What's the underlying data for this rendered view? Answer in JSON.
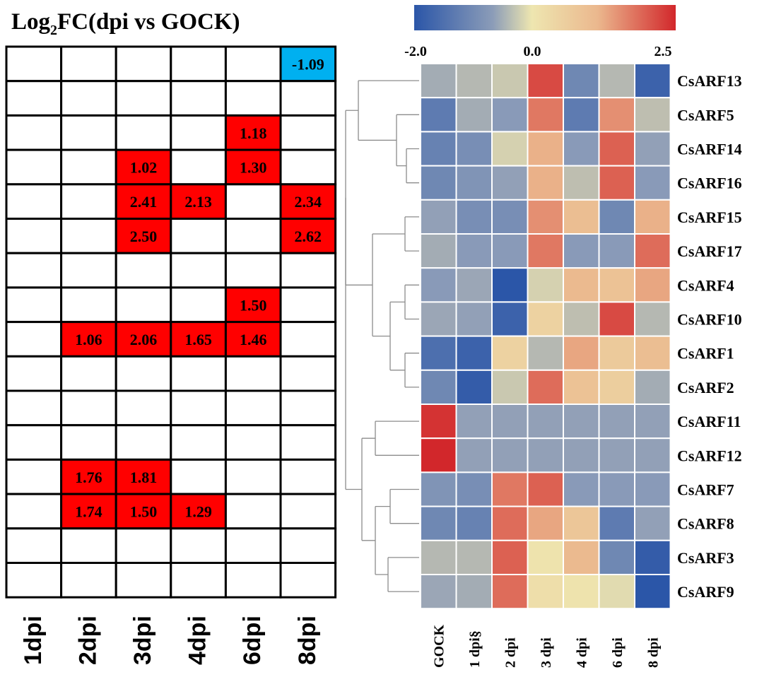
{
  "chart_data": [
    {
      "type": "table",
      "title_prefix": "Log",
      "title_subscript": "2",
      "title_suffix": "FC(dpi vs GOCK)",
      "columns": [
        "1dpi",
        "2dpi",
        "3dpi",
        "4dpi",
        "6dpi",
        "8dpi"
      ],
      "rows": 16,
      "cells": [
        [
          "",
          "",
          "",
          "",
          "",
          "-1.09"
        ],
        [
          "",
          "",
          "",
          "",
          "",
          ""
        ],
        [
          "",
          "",
          "",
          "",
          "1.18",
          ""
        ],
        [
          "",
          "",
          "1.02",
          "",
          "1.30",
          ""
        ],
        [
          "",
          "",
          "2.41",
          "2.13",
          "",
          "2.34"
        ],
        [
          "",
          "",
          "2.50",
          "",
          "",
          "2.62"
        ],
        [
          "",
          "",
          "",
          "",
          "",
          ""
        ],
        [
          "",
          "",
          "",
          "",
          "1.50",
          ""
        ],
        [
          "",
          "1.06",
          "2.06",
          "1.65",
          "1.46",
          ""
        ],
        [
          "",
          "",
          "",
          "",
          "",
          ""
        ],
        [
          "",
          "",
          "",
          "",
          "",
          ""
        ],
        [
          "",
          "",
          "",
          "",
          "",
          ""
        ],
        [
          "",
          "1.76",
          "1.81",
          "",
          "",
          ""
        ],
        [
          "",
          "1.74",
          "1.50",
          "1.29",
          "",
          ""
        ],
        [
          "",
          "",
          "",
          "",
          "",
          ""
        ],
        [
          "",
          "",
          "",
          "",
          "",
          ""
        ]
      ],
      "colors": {
        "up": "#ff0000",
        "down": "#00b0f0"
      }
    },
    {
      "type": "heatmap",
      "columns": [
        "GOCK",
        "1 dpi§",
        "2 dpi",
        "3 dpi",
        "4 dpi",
        "6 dpi",
        "8 dpi"
      ],
      "rows": [
        "CsARF13",
        "CsARF5",
        "CsARF14",
        "CsARF16",
        "CsARF15",
        "CsARF17",
        "CsARF4",
        "CsARF10",
        "CsARF1",
        "CsARF2",
        "CsARF11",
        "CsARF12",
        "CsARF7",
        "CsARF8",
        "CsARF3",
        "CsARF9"
      ],
      "values": [
        [
          -0.6,
          -0.4,
          -0.2,
          2.2,
          -1.2,
          -0.4,
          -1.8
        ],
        [
          -1.4,
          -0.6,
          -0.9,
          1.8,
          -1.4,
          1.6,
          -0.3
        ],
        [
          -1.3,
          -1.1,
          -0.1,
          1.3,
          -0.9,
          2.0,
          -0.8
        ],
        [
          -1.2,
          -1.0,
          -0.8,
          1.3,
          -0.3,
          2.0,
          -0.9
        ],
        [
          -0.8,
          -1.1,
          -1.1,
          1.6,
          1.1,
          -1.2,
          1.3
        ],
        [
          -0.6,
          -0.9,
          -0.9,
          1.8,
          -0.9,
          -0.9,
          1.9
        ],
        [
          -0.9,
          -0.7,
          -2.0,
          -0.1,
          1.2,
          1.0,
          1.4
        ],
        [
          -0.7,
          -0.8,
          -1.8,
          0.6,
          -0.3,
          2.2,
          -0.4
        ],
        [
          -1.6,
          -1.8,
          0.6,
          -0.4,
          1.4,
          0.8,
          1.1
        ],
        [
          -1.2,
          -1.9,
          -0.2,
          1.9,
          1.0,
          0.7,
          -0.6
        ],
        [
          2.4,
          -0.8,
          -0.8,
          -0.8,
          -0.8,
          -0.8,
          -0.8
        ],
        [
          2.5,
          -0.8,
          -0.8,
          -0.8,
          -0.8,
          -0.8,
          -0.8
        ],
        [
          -1.0,
          -1.1,
          1.8,
          2.0,
          -0.9,
          -0.9,
          -0.9
        ],
        [
          -1.2,
          -1.3,
          1.9,
          1.4,
          0.9,
          -1.4,
          -0.8
        ],
        [
          -0.4,
          -0.4,
          2.0,
          0.2,
          1.2,
          -1.2,
          -1.9
        ],
        [
          -0.7,
          -0.6,
          1.9,
          0.3,
          0.2,
          0.0,
          -2.0
        ]
      ],
      "legend": {
        "min_label": "-2.0",
        "mid_label": "0.0",
        "max_label": "2.5",
        "min": -2.0,
        "max": 2.5
      },
      "palette": [
        "#2b56a8",
        "#8b9cb8",
        "#bfbfb0",
        "#eee6b0",
        "#ebb88e",
        "#d2272b"
      ]
    }
  ]
}
